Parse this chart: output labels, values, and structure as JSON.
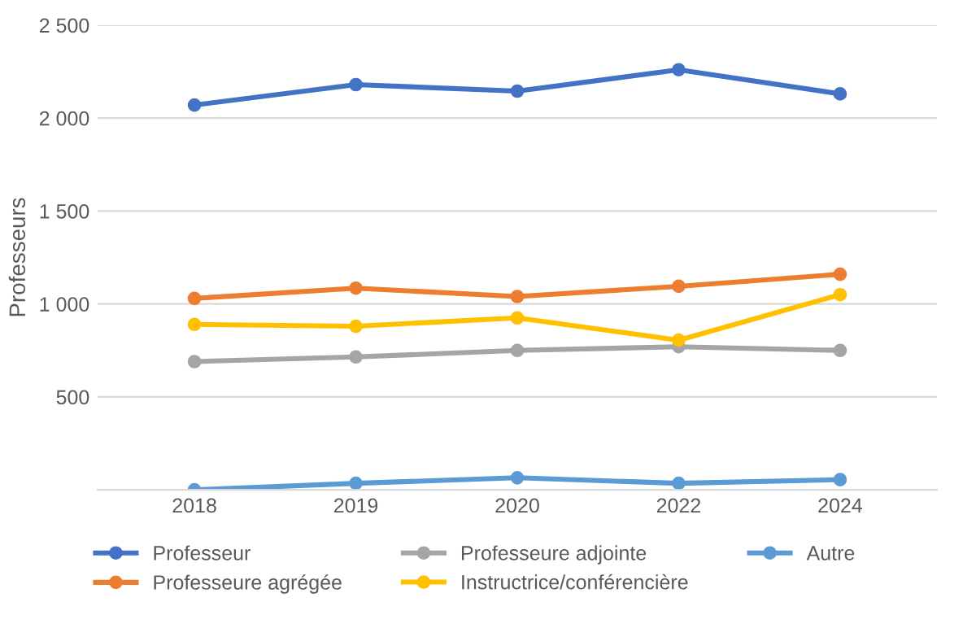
{
  "chart_data": {
    "type": "line",
    "ylabel": "Professeurs",
    "categories": [
      "2018",
      "2019",
      "2020",
      "2022",
      "2024"
    ],
    "series": [
      {
        "name": "Professeur",
        "color": "#4472c4",
        "values": [
          2070,
          2180,
          2145,
          2260,
          2130
        ]
      },
      {
        "name": "Professeure agrégée",
        "color": "#ed7d31",
        "values": [
          1030,
          1085,
          1040,
          1095,
          1160
        ]
      },
      {
        "name": "Professeure adjointe",
        "color": "#a5a5a5",
        "values": [
          690,
          715,
          750,
          770,
          750
        ]
      },
      {
        "name": "Instructrice/conférencière",
        "color": "#ffc000",
        "values": [
          890,
          880,
          925,
          805,
          1050
        ]
      },
      {
        "name": "Autre",
        "color": "#5b9bd5",
        "values": [
          0,
          35,
          65,
          35,
          55
        ]
      }
    ],
    "ylim": [
      0,
      2500
    ],
    "yticks": [
      {
        "value": 0,
        "label": null
      },
      500,
      {
        "value": 1000,
        "label": "1 000"
      },
      {
        "value": 1500,
        "label": "1 500"
      },
      {
        "value": 2000,
        "label": "2 000"
      },
      {
        "value": 2500,
        "label": "2 500"
      }
    ],
    "grid": "y",
    "legend": "bottom",
    "marker": "circle",
    "line_style": "solid"
  }
}
